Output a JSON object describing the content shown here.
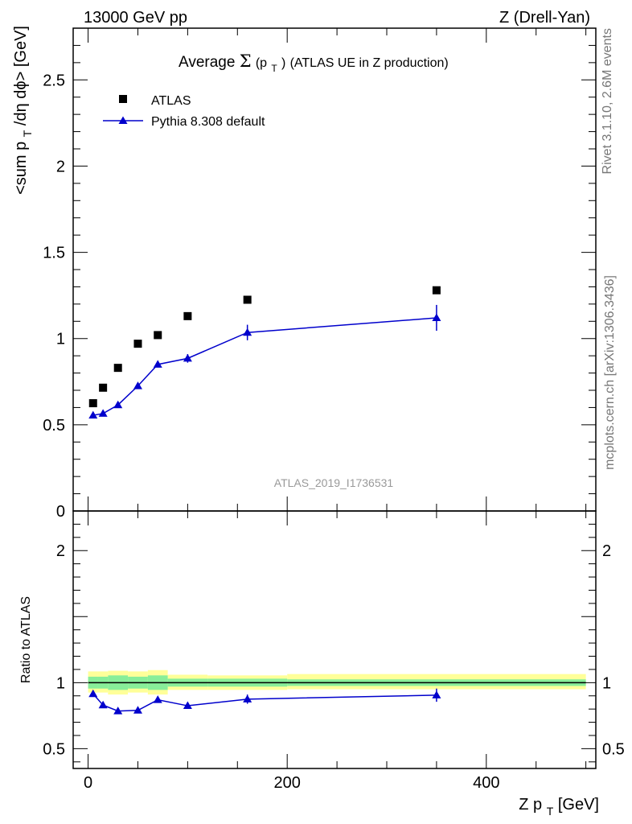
{
  "header": {
    "energy_label": "13000 GeV pp",
    "process_label": "Z (Drell-Yan)"
  },
  "side_labels": {
    "rivet": "Rivet 3.1.10,  2.6M events",
    "mcplots": "mcplots.cern.ch [arXiv:1306.3436]"
  },
  "chart_data": [
    {
      "type": "scatter",
      "title": {
        "prefix": "Average ",
        "sigma": "Σ",
        "open": "(p",
        "sub": "T",
        "close": ")",
        "suffix": " (ATLAS UE in Z production)"
      },
      "ylabel": "<sum p_T/dη dϕ> [GeV]",
      "ylabel_parts": {
        "pre": "<sum p",
        "sub": "T",
        "post": "/dη dϕ> [GeV]"
      },
      "analysis_label": "ATLAS_2019_I1736531",
      "xlim": [
        -15,
        510
      ],
      "ylim": [
        0,
        2.8
      ],
      "yticks": [
        {
          "value": 0,
          "label": "0"
        },
        {
          "value": 0.5,
          "label": "0.5"
        },
        {
          "value": 1,
          "label": "1"
        },
        {
          "value": 1.5,
          "label": "1.5"
        },
        {
          "value": 2,
          "label": "2"
        },
        {
          "value": 2.5,
          "label": "2.5"
        }
      ],
      "legend_position": "top-left",
      "series": [
        {
          "name": "ATLAS",
          "marker": "square",
          "color": "#000000",
          "x": [
            5,
            15,
            30,
            50,
            70,
            100,
            160,
            350
          ],
          "y": [
            0.625,
            0.715,
            0.83,
            0.97,
            1.02,
            1.13,
            1.225,
            1.28
          ]
        },
        {
          "name": "Pythia 8.308 default",
          "marker": "triangle",
          "color": "#0000cc",
          "x": [
            5,
            15,
            30,
            50,
            70,
            100,
            160,
            350
          ],
          "y": [
            0.555,
            0.565,
            0.615,
            0.725,
            0.85,
            0.885,
            1.035,
            1.12
          ],
          "yerr": [
            0.01,
            0.01,
            0.01,
            0.012,
            0.015,
            0.025,
            0.045,
            0.075
          ]
        }
      ]
    },
    {
      "type": "scatter",
      "ylabel": "Ratio to ATLAS",
      "xlabel": "Z p_T [GeV]",
      "xlabel_parts": {
        "pre": "Z p",
        "sub": "T",
        "post": " [GeV]"
      },
      "xlim": [
        -15,
        510
      ],
      "ylim": [
        0.35,
        2.3
      ],
      "xticks": [
        {
          "value": 0,
          "label": "0"
        },
        {
          "value": 200,
          "label": "200"
        },
        {
          "value": 400,
          "label": "400"
        }
      ],
      "yticks": [
        {
          "value": 0.5,
          "label": "0.5"
        },
        {
          "value": 1,
          "label": "1"
        },
        {
          "value": 2,
          "label": "2"
        }
      ],
      "reference_line": 1,
      "bands": {
        "edges": [
          0,
          10,
          20,
          40,
          60,
          80,
          120,
          200,
          500
        ],
        "inner_low": [
          0.955,
          0.955,
          0.945,
          0.955,
          0.945,
          0.97,
          0.97,
          0.975
        ],
        "inner_high": [
          1.045,
          1.045,
          1.055,
          1.045,
          1.055,
          1.03,
          1.03,
          1.025
        ],
        "outer_low": [
          0.925,
          0.925,
          0.91,
          0.925,
          0.91,
          0.945,
          0.945,
          0.95
        ],
        "outer_high": [
          1.085,
          1.085,
          1.09,
          1.085,
          1.095,
          1.06,
          1.055,
          1.065
        ],
        "inner_color": "#88ee99",
        "outer_color": "#ffff99"
      },
      "series": [
        {
          "name": "Pythia 8.308 default",
          "marker": "triangle",
          "color": "#0000cc",
          "x": [
            5,
            15,
            30,
            50,
            70,
            100,
            160,
            350
          ],
          "y": [
            0.915,
            0.83,
            0.785,
            0.79,
            0.87,
            0.825,
            0.875,
            0.905
          ],
          "yerr": [
            0.01,
            0.012,
            0.012,
            0.015,
            0.02,
            0.02,
            0.035,
            0.05
          ]
        }
      ]
    }
  ]
}
